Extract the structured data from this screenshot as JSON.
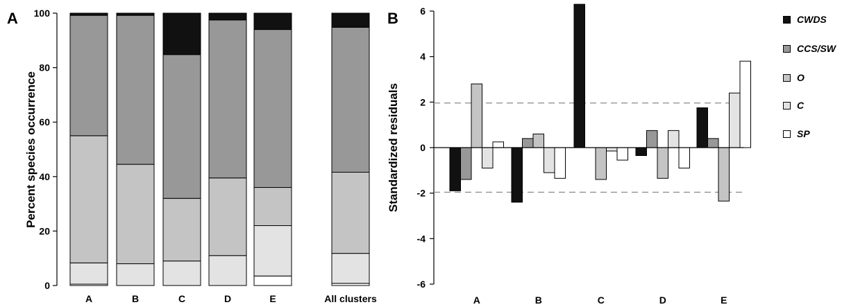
{
  "chart_data": [
    {
      "panel_label": "A",
      "type": "bar",
      "stacked": true,
      "ylabel": "Percent species occurrence",
      "ylim": [
        0,
        100
      ],
      "yticks": [
        "0",
        "20",
        "40",
        "60",
        "80",
        "100"
      ],
      "categories": [
        "A",
        "B",
        "C",
        "D",
        "E",
        "All clusters"
      ],
      "series": [
        {
          "name": "SP",
          "color": "#ffffff",
          "values": [
            0.5,
            0,
            0,
            0,
            3.5,
            0.8
          ]
        },
        {
          "name": "C",
          "color": "#e3e3e3",
          "values": [
            7.8,
            8,
            9,
            11,
            18.5,
            11
          ]
        },
        {
          "name": "O",
          "color": "#c4c4c4",
          "values": [
            46.7,
            36.5,
            23,
            28.5,
            14,
            29.8
          ]
        },
        {
          "name": "CCS/SW",
          "color": "#989898",
          "values": [
            44.2,
            54.7,
            52.8,
            58,
            58,
            53.2
          ]
        },
        {
          "name": "CWDS",
          "color": "#111111",
          "values": [
            0.8,
            0.8,
            15.2,
            2.5,
            6,
            5.2
          ]
        }
      ]
    },
    {
      "panel_label": "B",
      "type": "bar",
      "ylabel": "Standardized residuals",
      "ylim": [
        -6,
        6
      ],
      "yticks": [
        "-6",
        "-4",
        "-2",
        "0",
        "2",
        "4",
        "6"
      ],
      "reference_lines": [
        1.96,
        -1.96
      ],
      "categories": [
        "A",
        "B",
        "C",
        "D",
        "E"
      ],
      "series": [
        {
          "name": "CWDS",
          "color": "#111111",
          "values": [
            -1.9,
            -2.4,
            6.3,
            -0.35,
            1.75
          ]
        },
        {
          "name": "CCS/SW",
          "color": "#989898",
          "values": [
            -1.4,
            0.4,
            0,
            0.75,
            0.4
          ]
        },
        {
          "name": "O",
          "color": "#c4c4c4",
          "values": [
            2.8,
            0.6,
            -1.4,
            -1.35,
            -2.35
          ]
        },
        {
          "name": "C",
          "color": "#e3e3e3",
          "values": [
            -0.9,
            -1.1,
            -0.15,
            0.75,
            2.4
          ]
        },
        {
          "name": "SP",
          "color": "#ffffff",
          "values": [
            0.25,
            -1.35,
            -0.55,
            -0.9,
            3.8
          ]
        }
      ]
    }
  ],
  "legend": [
    {
      "label": "CWDS",
      "color": "#111111"
    },
    {
      "label": "CCS/SW",
      "color": "#989898"
    },
    {
      "label": "O",
      "color": "#c4c4c4"
    },
    {
      "label": "C",
      "color": "#e3e3e3"
    },
    {
      "label": "SP",
      "color": "#ffffff"
    }
  ]
}
